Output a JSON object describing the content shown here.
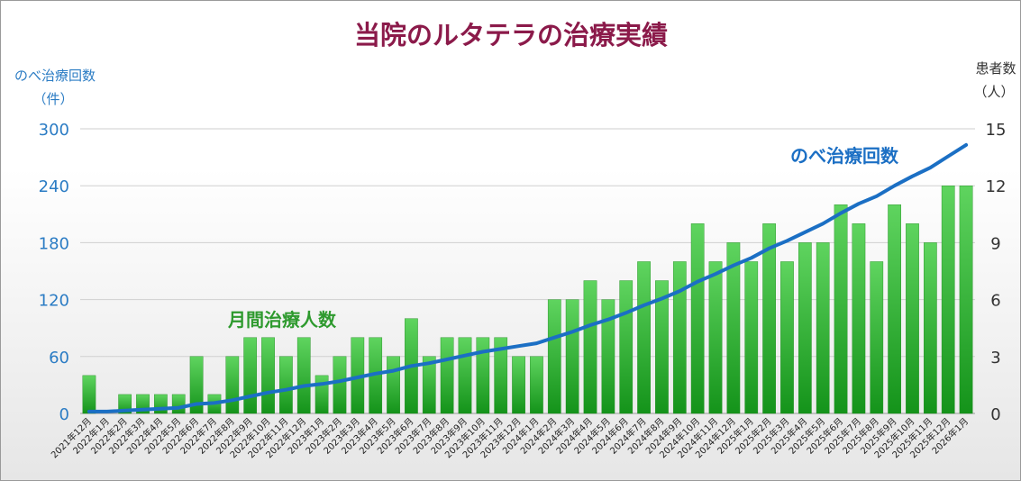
{
  "chart_data": {
    "type": "bar+line",
    "title": "当院のルタテラの治療実績",
    "left_axis": {
      "label_line1": "のべ治療回数",
      "label_line2": "（件）",
      "ticks": [
        "0",
        "60",
        "120",
        "180",
        "240",
        "300"
      ],
      "ylim": [
        0,
        300
      ]
    },
    "right_axis": {
      "label_line1": "患者数",
      "label_line2": "（人）",
      "ticks": [
        "0",
        "3",
        "6",
        "9",
        "12",
        "15"
      ],
      "ylim": [
        0,
        15
      ]
    },
    "categories": [
      "2021年12月",
      "2022年1月",
      "2022年2月",
      "2022年3月",
      "2022年4月",
      "2022年5月",
      "2022年6月",
      "2022年7月",
      "2022年8月",
      "2022年9月",
      "2022年10月",
      "2022年11月",
      "2022年12月",
      "2023年1月",
      "2023年2月",
      "2023年3月",
      "2023年4月",
      "2023年5月",
      "2023年6月",
      "2023年7月",
      "2023年8月",
      "2023年9月",
      "2023年10月",
      "2023年11月",
      "2023年12月",
      "2024年1月",
      "2024年2月",
      "2024年3月",
      "2024年4月",
      "2024年5月",
      "2024年6月",
      "2024年7月",
      "2024年8月",
      "2024年9月",
      "2024年10月",
      "2024年11月",
      "2024年12月",
      "2025年1月",
      "2025年2月",
      "2025年3月",
      "2025年4月",
      "2025年5月",
      "2025年6月",
      "2025年7月",
      "2025年8月",
      "2025年9月",
      "2025年10月",
      "2025年11月",
      "2025年12月",
      "2026年1月"
    ],
    "series": [
      {
        "name": "月間治療人数",
        "type": "bar",
        "axis": "right",
        "color": "#2ea82e",
        "values": [
          2,
          0,
          1,
          1,
          1,
          1,
          3,
          1,
          3,
          4,
          4,
          3,
          4,
          2,
          3,
          4,
          4,
          3,
          5,
          3,
          4,
          4,
          4,
          4,
          3,
          3,
          6,
          6,
          7,
          6,
          7,
          8,
          7,
          8,
          10,
          8,
          9,
          8,
          10,
          8,
          9,
          9,
          11,
          10,
          8,
          11,
          10,
          9,
          12,
          12
        ]
      },
      {
        "name": "のべ治療回数",
        "type": "line",
        "axis": "left",
        "color": "#1b6fc4",
        "values": [
          2,
          2,
          3,
          4,
          5,
          6,
          10,
          11,
          14,
          18,
          22,
          25,
          29,
          31,
          34,
          38,
          42,
          45,
          50,
          53,
          57,
          61,
          65,
          68,
          71,
          74,
          80,
          86,
          93,
          99,
          106,
          114,
          121,
          129,
          139,
          147,
          156,
          164,
          174,
          182,
          191,
          200,
          211,
          221,
          229,
          240,
          250,
          259,
          271,
          283
        ]
      }
    ],
    "colors": {
      "title": "#8b1a4a",
      "axis_text": "#2b7cc4",
      "bar_label": "#2e9a2e",
      "line_label": "#1b6fc4",
      "grid": "#cfcfcf"
    }
  }
}
